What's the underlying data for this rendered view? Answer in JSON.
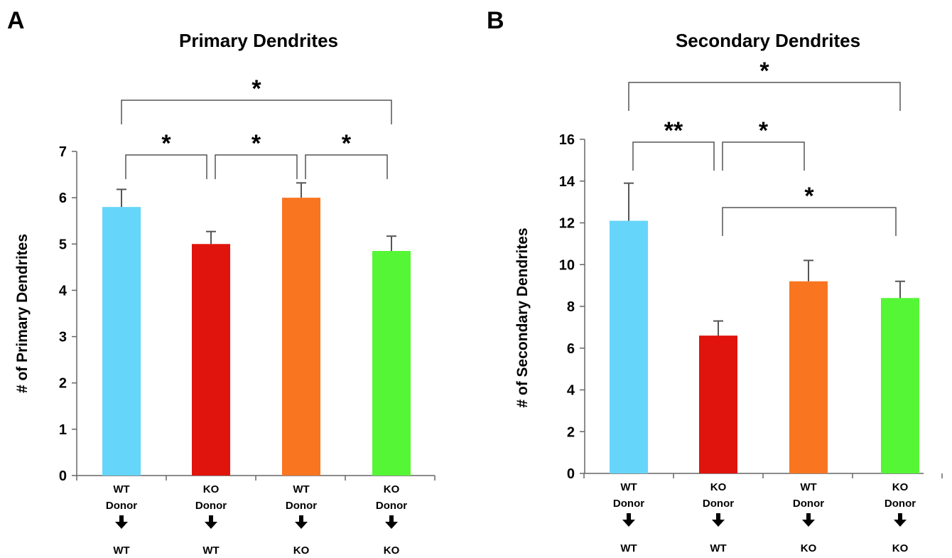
{
  "chart_data": [
    {
      "type": "bar",
      "panel_label": "A",
      "title": "Primary Dendrites",
      "xlabel": "",
      "ylabel": "# of Primary Dendrites",
      "ylim": [
        0,
        7
      ],
      "yticks": [
        0,
        1,
        2,
        3,
        4,
        5,
        6,
        7
      ],
      "grid": false,
      "legend": "none",
      "categories": [
        "WT Donor → WT",
        "KO Donor → WT",
        "WT Donor → KO",
        "KO Donor → KO"
      ],
      "category_labels": [
        {
          "donor": "WT",
          "donor_word": "Donor",
          "recipient": "WT"
        },
        {
          "donor": "KO",
          "donor_word": "Donor",
          "recipient": "WT"
        },
        {
          "donor": "WT",
          "donor_word": "Donor",
          "recipient": "KO"
        },
        {
          "donor": "KO",
          "donor_word": "Donor",
          "recipient": "KO"
        }
      ],
      "values": [
        5.8,
        5.0,
        6.0,
        4.85
      ],
      "errors": [
        0.38,
        0.27,
        0.32,
        0.32
      ],
      "colors": [
        "#66d5fa",
        "#e0140c",
        "#f97520",
        "#55f635"
      ],
      "significance": [
        {
          "from": 0,
          "to": 3,
          "label": "*",
          "level": 2
        },
        {
          "from": 0,
          "to": 1,
          "label": "*",
          "level": 1
        },
        {
          "from": 1,
          "to": 2,
          "label": "*",
          "level": 1
        },
        {
          "from": 2,
          "to": 3,
          "label": "*",
          "level": 1
        }
      ]
    },
    {
      "type": "bar",
      "panel_label": "B",
      "title": "Secondary Dendrites",
      "xlabel": "",
      "ylabel": "# of Secondary Dendrites",
      "ylim": [
        0,
        16
      ],
      "yticks": [
        0,
        2,
        4,
        6,
        8,
        10,
        12,
        14,
        16
      ],
      "grid": false,
      "legend": "none",
      "categories": [
        "WT Donor → WT",
        "KO Donor → WT",
        "WT Donor → KO",
        "KO Donor → KO"
      ],
      "category_labels": [
        {
          "donor": "WT",
          "donor_word": "Donor",
          "recipient": "WT"
        },
        {
          "donor": "KO",
          "donor_word": "Donor",
          "recipient": "WT"
        },
        {
          "donor": "WT",
          "donor_word": "Donor",
          "recipient": "KO"
        },
        {
          "donor": "KO",
          "donor_word": "Donor",
          "recipient": "KO"
        }
      ],
      "values": [
        12.1,
        6.6,
        9.2,
        8.4
      ],
      "errors": [
        1.8,
        0.7,
        1.0,
        0.8
      ],
      "colors": [
        "#66d5fa",
        "#e0140c",
        "#f97520",
        "#55f635"
      ],
      "significance": [
        {
          "from": 0,
          "to": 3,
          "label": "*",
          "level": 3
        },
        {
          "from": 0,
          "to": 1,
          "label": "**",
          "level": 2
        },
        {
          "from": 1,
          "to": 2,
          "label": "*",
          "level": 2
        },
        {
          "from": 1,
          "to": 3,
          "label": "*",
          "level": 1
        }
      ]
    }
  ]
}
